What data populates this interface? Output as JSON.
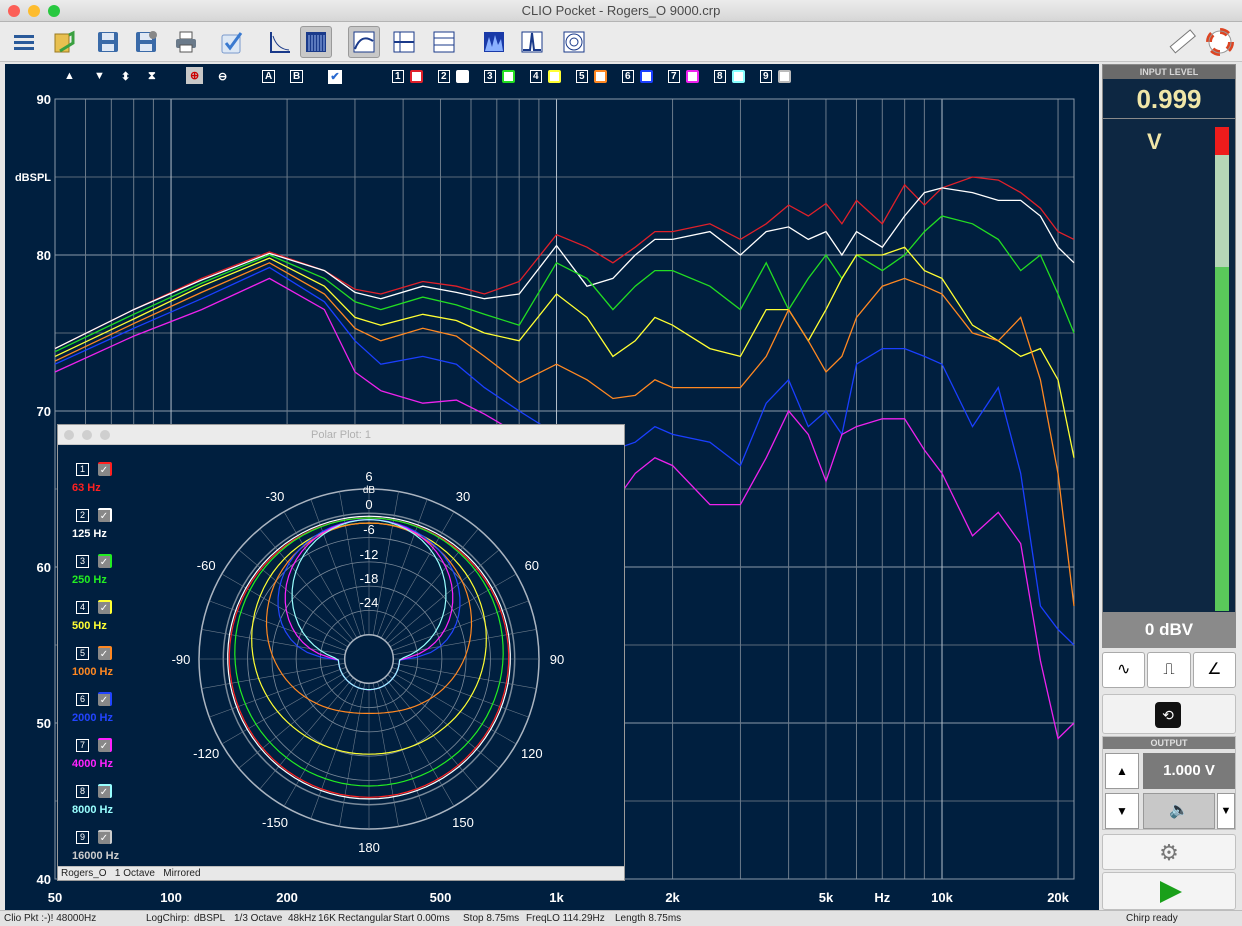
{
  "window": {
    "title": "CLIO Pocket - Rogers_O 9000.crp"
  },
  "toolbar": {
    "icons": [
      "menu-icon",
      "open-icon",
      "save-icon",
      "save-as-icon",
      "print-icon",
      "check-icon",
      "chart-frame-icon",
      "bars-icon",
      "curve-icon",
      "cross-icon",
      "scale-icon",
      "waterfall-icon",
      "impulse-icon",
      "polar-icon",
      "ruler-icon",
      "lifebuoy-icon"
    ]
  },
  "graph": {
    "y_unit": "dBSPL",
    "y_ticks": [
      "90",
      "80",
      "70",
      "60",
      "50",
      "40"
    ],
    "x_ticks": [
      "50",
      "100",
      "200",
      "500",
      "1k",
      "2k",
      "5k",
      "Hz",
      "10k",
      "20k"
    ],
    "ab": [
      "A",
      "B"
    ],
    "slots": [
      "1",
      "2",
      "3",
      "4",
      "5",
      "6",
      "7",
      "8",
      "9"
    ],
    "colors": [
      "#e0202a",
      "#ffffff",
      "#22dd22",
      "#ffff33",
      "#ff8822",
      "#1a3fff",
      "#ee22ee",
      "#88ffff",
      "#bbbbbb"
    ]
  },
  "chart_data": {
    "type": "line",
    "xscale": "log",
    "xlim": [
      50,
      22000
    ],
    "ylim": [
      40,
      90
    ],
    "ylabel": "dBSPL",
    "xlabel": "Hz",
    "series": [
      {
        "color": "#e0202a",
        "x": [
          50,
          80,
          120,
          180,
          250,
          300,
          350,
          450,
          550,
          650,
          800,
          1000,
          1200,
          1400,
          1600,
          1800,
          2000,
          2500,
          3000,
          3500,
          4000,
          4500,
          5000,
          5500,
          6000,
          7000,
          8000,
          9000,
          10000,
          12000,
          14000,
          16000,
          18000,
          20000,
          22000
        ],
        "y": [
          74,
          76.5,
          78.5,
          80.2,
          79,
          77.8,
          77.5,
          78.3,
          78,
          77.5,
          78.3,
          81.3,
          80.5,
          79.5,
          80.5,
          81.5,
          81.5,
          82,
          81,
          82,
          83.2,
          82.5,
          83.3,
          82,
          83.5,
          82,
          84.5,
          83.2,
          84.3,
          85,
          84.8,
          84,
          83,
          81.5,
          81
        ]
      },
      {
        "color": "#ffffff",
        "x": [
          50,
          80,
          120,
          180,
          250,
          300,
          350,
          450,
          550,
          650,
          800,
          1000,
          1200,
          1400,
          1600,
          1800,
          2000,
          2500,
          3000,
          3500,
          4000,
          4500,
          5000,
          5500,
          6000,
          7000,
          8000,
          9000,
          10000,
          12000,
          14000,
          16000,
          18000,
          20000,
          22000
        ],
        "y": [
          74,
          76.5,
          78.4,
          80.1,
          79,
          77.6,
          77.2,
          78,
          77.6,
          77.2,
          77.5,
          80.6,
          78,
          78.5,
          80,
          81,
          81,
          81.5,
          80,
          81.5,
          81.8,
          81,
          81.5,
          80,
          81.5,
          80.5,
          82.5,
          84,
          84.3,
          84,
          83.5,
          83.5,
          82.5,
          80.5,
          79.5
        ]
      },
      {
        "color": "#22dd22",
        "x": [
          50,
          80,
          120,
          180,
          250,
          300,
          350,
          450,
          550,
          650,
          800,
          1000,
          1200,
          1400,
          1600,
          1800,
          2000,
          2500,
          3000,
          3500,
          4000,
          4500,
          5000,
          5500,
          6000,
          7000,
          8000,
          9000,
          10000,
          12000,
          14000,
          16000,
          18000,
          20000,
          22000
        ],
        "y": [
          73.8,
          76.2,
          78.2,
          80,
          78.5,
          77,
          76.5,
          77.3,
          76.8,
          76.2,
          75.5,
          79.5,
          78.5,
          76.5,
          78,
          79,
          79,
          78,
          76.5,
          79.5,
          76.5,
          78.5,
          80,
          78.5,
          80,
          79,
          80,
          81.5,
          82.5,
          82,
          81,
          79,
          80,
          77.5,
          75
        ]
      },
      {
        "color": "#ffff33",
        "x": [
          50,
          80,
          120,
          180,
          250,
          300,
          350,
          450,
          550,
          650,
          800,
          1000,
          1200,
          1400,
          1600,
          1800,
          2000,
          2500,
          3000,
          3500,
          4000,
          4500,
          5000,
          5500,
          6000,
          7000,
          8000,
          9000,
          10000,
          12000,
          14000,
          16000,
          18000,
          20000,
          22000
        ],
        "y": [
          73.5,
          75.9,
          78,
          79.8,
          78,
          76,
          75.5,
          76.2,
          75.8,
          75,
          74.5,
          77.5,
          76,
          73.5,
          74.5,
          76,
          75.5,
          74,
          73.5,
          76.5,
          76.5,
          74.5,
          76.5,
          78.5,
          80,
          80,
          80.5,
          79,
          78.5,
          75.5,
          74.5,
          73.5,
          74,
          72,
          67
        ]
      },
      {
        "color": "#ff8822",
        "x": [
          50,
          80,
          120,
          180,
          250,
          300,
          350,
          450,
          550,
          650,
          800,
          1000,
          1200,
          1400,
          1600,
          1800,
          2000,
          2500,
          3000,
          3500,
          4000,
          4500,
          5000,
          5500,
          6000,
          7000,
          8000,
          9000,
          10000,
          12000,
          14000,
          16000,
          18000,
          20000,
          22000
        ],
        "y": [
          73.2,
          75.6,
          77.6,
          79.5,
          77.5,
          75.3,
          74.5,
          75.3,
          74.8,
          73.5,
          71.8,
          73,
          72,
          70.8,
          71,
          72,
          71.5,
          71.5,
          71.5,
          73.5,
          76.5,
          74.5,
          72.5,
          73.5,
          76,
          78,
          78.5,
          78,
          77.5,
          75,
          74.5,
          76,
          72,
          66,
          57.5
        ]
      },
      {
        "color": "#1a3fff",
        "x": [
          50,
          80,
          120,
          180,
          250,
          300,
          350,
          450,
          550,
          650,
          800,
          1000,
          1200,
          1400,
          1600,
          1800,
          2000,
          2500,
          3000,
          3500,
          4000,
          4500,
          5000,
          5500,
          6000,
          7000,
          8000,
          9000,
          10000,
          12000,
          14000,
          16000,
          18000,
          20000,
          22000
        ],
        "y": [
          73,
          75.3,
          77.2,
          79.2,
          77,
          74.5,
          73,
          73.5,
          73,
          71.5,
          70,
          68.5,
          68,
          67.5,
          68,
          69,
          68.5,
          68,
          66.5,
          70.5,
          72,
          69,
          70,
          68.5,
          73,
          74,
          74,
          73.5,
          73,
          69,
          71.5,
          66,
          57.5,
          56,
          55
        ]
      },
      {
        "color": "#ee22ee",
        "x": [
          50,
          80,
          120,
          180,
          250,
          300,
          350,
          450,
          550,
          650,
          800,
          1000,
          1200,
          1400,
          1600,
          1800,
          2000,
          2500,
          3000,
          3500,
          4000,
          4500,
          5000,
          5500,
          6000,
          7000,
          8000,
          9000,
          10000,
          12000,
          14000,
          16000,
          18000,
          20000,
          22000
        ],
        "y": [
          72.5,
          74.8,
          76.5,
          78.5,
          76.5,
          72.5,
          71.3,
          70.5,
          70.7,
          69.8,
          68.5,
          65.5,
          63.5,
          64,
          66,
          67,
          66.5,
          64,
          64,
          67,
          70,
          68.5,
          65.5,
          68.5,
          69,
          69.5,
          69.5,
          67.5,
          66,
          62,
          63.5,
          61.5,
          54,
          49,
          50
        ]
      }
    ]
  },
  "polar": {
    "title": "Polar Plot: 1",
    "footer": [
      "Rogers_O",
      "1 Octave",
      "Mirrored"
    ],
    "legend": [
      {
        "num": "1",
        "label": "63 Hz",
        "color": "#ff2020"
      },
      {
        "num": "2",
        "label": "125 Hz",
        "color": "#ffffff"
      },
      {
        "num": "3",
        "label": "250 Hz",
        "color": "#22ee22"
      },
      {
        "num": "4",
        "label": "500 Hz",
        "color": "#ffff33"
      },
      {
        "num": "5",
        "label": "1000 Hz",
        "color": "#ff8822"
      },
      {
        "num": "6",
        "label": "2000 Hz",
        "color": "#2244ff"
      },
      {
        "num": "7",
        "label": "4000 Hz",
        "color": "#ff22ff"
      },
      {
        "num": "8",
        "label": "8000 Hz",
        "color": "#99ffff"
      },
      {
        "num": "9",
        "label": "16000 Hz",
        "color": "#cccccc"
      }
    ],
    "ring_labels": [
      "6",
      "dB",
      "0",
      "-6",
      "-12",
      "-18",
      "-24"
    ],
    "angle_labels": [
      "-30",
      "30",
      "-60",
      "60",
      "-90",
      "90",
      "-120",
      "120",
      "-150",
      "150",
      "180"
    ]
  },
  "input": {
    "header": "INPUT LEVEL",
    "value": "0.999",
    "unit": "V",
    "ref": "0 dBV",
    "meter_level": 0.71
  },
  "output": {
    "header": "OUTPUT",
    "value": "1.000 V"
  },
  "status": {
    "left": "Clio Pkt :-)! 48000Hz",
    "params": [
      "LogChirp:",
      "dBSPL",
      "1/3 Octave",
      "48kHz",
      "16K",
      "Rectangular",
      "Start 0.00ms",
      "Stop 8.75ms",
      "FreqLO 114.29Hz",
      "Length 8.75ms"
    ],
    "right": "Chirp ready"
  }
}
